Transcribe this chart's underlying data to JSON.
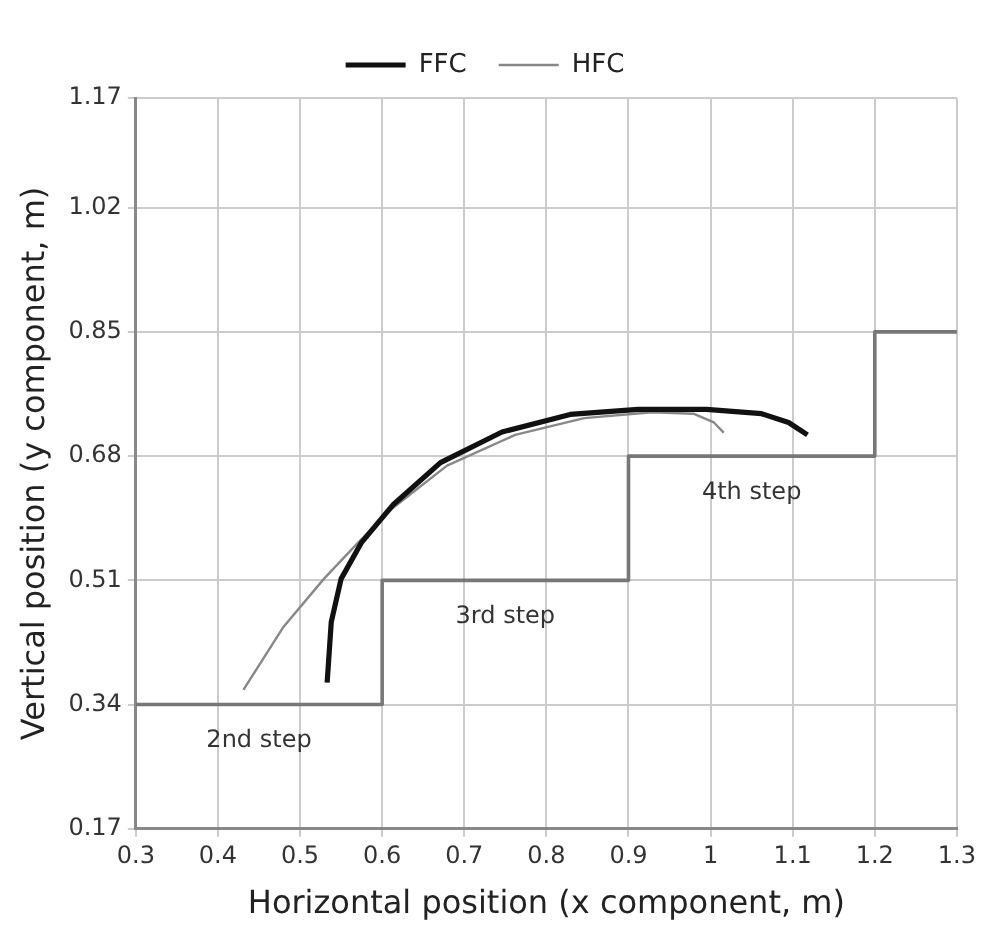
{
  "chart_data": {
    "type": "line",
    "xlabel": "Horizontal position (x component, m)",
    "ylabel": "Vertical position (y component, m)",
    "xlim": [
      0.3,
      1.3
    ],
    "xticks": [
      0.3,
      0.4,
      0.5,
      0.6,
      0.7,
      0.8,
      0.9,
      1,
      1.1,
      1.2,
      1.3
    ],
    "ylim": [
      0.17,
      1.17
    ],
    "yticks": [
      0.17,
      0.34,
      0.51,
      0.68,
      0.85,
      1.02,
      1.17
    ],
    "grid": true,
    "legend": "top",
    "marker": "none",
    "line_style": "solid",
    "series": [
      {
        "name": "FFC",
        "color": "#111111",
        "x": [
          0.533,
          0.538,
          0.55,
          0.575,
          0.613,
          0.671,
          0.746,
          0.829,
          0.912,
          0.995,
          1.062,
          1.095,
          1.118
        ],
        "values": [
          0.37,
          0.453,
          0.512,
          0.562,
          0.613,
          0.671,
          0.713,
          0.737,
          0.744,
          0.744,
          0.738,
          0.726,
          0.709
        ]
      },
      {
        "name": "HFC",
        "color": "#888888",
        "x": [
          0.431,
          0.479,
          0.529,
          0.571,
          0.613,
          0.679,
          0.762,
          0.846,
          0.929,
          0.979,
          1.004,
          1.016
        ],
        "values": [
          0.36,
          0.445,
          0.512,
          0.562,
          0.609,
          0.667,
          0.709,
          0.732,
          0.74,
          0.738,
          0.726,
          0.712
        ]
      },
      {
        "color": "#777777",
        "x": [
          0.3,
          0.6,
          0.6,
          0.9,
          0.9,
          1.2,
          1.2,
          1.3
        ],
        "values": [
          0.34,
          0.34,
          0.51,
          0.51,
          0.68,
          0.68,
          0.85,
          0.85
        ]
      }
    ],
    "annotations": [
      "2nd step",
      "3rd step",
      "4th step"
    ]
  }
}
